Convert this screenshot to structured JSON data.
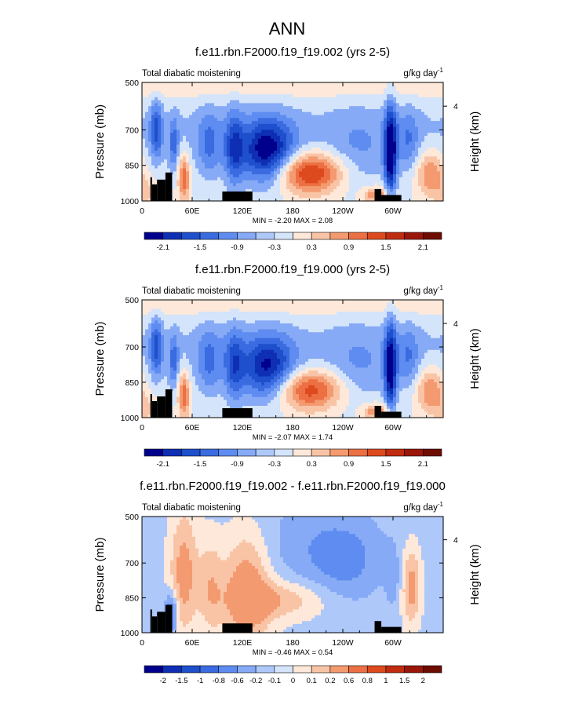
{
  "page": {
    "title": "ANN"
  },
  "colors": {
    "land": "#000000",
    "border": "#000000",
    "blues": [
      "#00008c",
      "#0e2fb4",
      "#1e4fcc",
      "#3a6be0",
      "#5e8cf0",
      "#86aaf5",
      "#afc8fa",
      "#d4e4fa"
    ],
    "reds": [
      "#fde8d9",
      "#f9c4a6",
      "#f49a70",
      "#ec7044",
      "#dd4a1e",
      "#c02c10",
      "#9a1608",
      "#6e0c00"
    ],
    "diff_center": "#dde9f8",
    "diff_blues": [
      "#00008c",
      "#0e2fb4",
      "#1e4fcc",
      "#3a6be0",
      "#5e8cf0",
      "#86aaf5",
      "#afc8fa",
      "#d4e4fa"
    ],
    "diff_reds": [
      "#fde8d9",
      "#f9c4a6",
      "#f49a70",
      "#ec7044",
      "#dd4a1e",
      "#c02c10",
      "#9a1608",
      "#6e0c00"
    ]
  },
  "chart_data": [
    {
      "type": "heatmap",
      "title": "f.e11.rbn.F2000.f19_f19.002 (yrs 2-5)",
      "left_label": "Total diabatic moistening",
      "units_label": "g/kg day",
      "units_exp": "-1",
      "ylabel": "Pressure (mb)",
      "y2label": "Height (km)",
      "yticks": [
        "500",
        "700",
        "850",
        "1000"
      ],
      "ytick_values": [
        500,
        700,
        850,
        1000
      ],
      "y2ticks": [
        "4"
      ],
      "y2tick_values": [
        600
      ],
      "xticks": [
        "0",
        "60E",
        "120E",
        "180",
        "120W",
        "60W"
      ],
      "xtick_values": [
        0,
        60,
        120,
        180,
        240,
        300
      ],
      "xlim": [
        0,
        360
      ],
      "ylim": [
        500,
        1000
      ],
      "stats": "MIN = -2.20  MAX =  2.08",
      "colorbar_labels": [
        "-2.1",
        "-1.5",
        "-0.9",
        "-0.3",
        "0.3",
        "0.9",
        "1.5",
        "2.1"
      ],
      "colorbar_levels": [
        -2.1,
        -1.8,
        -1.5,
        -1.2,
        -0.9,
        -0.6,
        -0.3,
        0,
        0.3,
        0.6,
        0.9,
        1.2,
        1.5,
        1.8,
        2.1
      ],
      "land_segments": [
        [
          10,
          12,
          900
        ],
        [
          12,
          18,
          930
        ],
        [
          18,
          28,
          910
        ],
        [
          28,
          36,
          880
        ],
        [
          96,
          132,
          960
        ],
        [
          278,
          286,
          950
        ],
        [
          286,
          310,
          975
        ]
      ]
    },
    {
      "type": "heatmap",
      "title": "f.e11.rbn.F2000.f19_f19.000 (yrs 2-5)",
      "left_label": "Total diabatic moistening",
      "units_label": "g/kg day",
      "units_exp": "-1",
      "ylabel": "Pressure (mb)",
      "y2label": "Height (km)",
      "yticks": [
        "500",
        "700",
        "850",
        "1000"
      ],
      "ytick_values": [
        500,
        700,
        850,
        1000
      ],
      "y2ticks": [
        "4"
      ],
      "y2tick_values": [
        600
      ],
      "xticks": [
        "0",
        "60E",
        "120E",
        "180",
        "120W",
        "60W"
      ],
      "xtick_values": [
        0,
        60,
        120,
        180,
        240,
        300
      ],
      "xlim": [
        0,
        360
      ],
      "ylim": [
        500,
        1000
      ],
      "stats": "MIN = -2.07  MAX =  1.74",
      "colorbar_labels": [
        "-2.1",
        "-1.5",
        "-0.9",
        "-0.3",
        "0.3",
        "0.9",
        "1.5",
        "2.1"
      ],
      "colorbar_levels": [
        -2.1,
        -1.8,
        -1.5,
        -1.2,
        -0.9,
        -0.6,
        -0.3,
        0,
        0.3,
        0.6,
        0.9,
        1.2,
        1.5,
        1.8,
        2.1
      ],
      "land_segments": [
        [
          10,
          12,
          900
        ],
        [
          12,
          18,
          930
        ],
        [
          18,
          28,
          910
        ],
        [
          28,
          36,
          880
        ],
        [
          96,
          132,
          960
        ],
        [
          278,
          286,
          950
        ],
        [
          286,
          310,
          975
        ]
      ]
    },
    {
      "type": "heatmap",
      "title": "f.e11.rbn.F2000.f19_f19.002 - f.e11.rbn.F2000.f19_f19.000",
      "left_label": "Total diabatic moistening",
      "units_label": "g/kg day",
      "units_exp": "-1",
      "ylabel": "Pressure (mb)",
      "y2label": "Height (km)",
      "yticks": [
        "500",
        "700",
        "850",
        "1000"
      ],
      "ytick_values": [
        500,
        700,
        850,
        1000
      ],
      "y2ticks": [
        "4"
      ],
      "y2tick_values": [
        600
      ],
      "xticks": [
        "0",
        "60E",
        "120E",
        "180",
        "120W",
        "60W"
      ],
      "xtick_values": [
        0,
        60,
        120,
        180,
        240,
        300
      ],
      "xlim": [
        0,
        360
      ],
      "ylim": [
        500,
        1000
      ],
      "stats": "MIN = -0.46  MAX =  0.54",
      "colorbar_labels": [
        "-2",
        "-1.5",
        "-1",
        "-0.8",
        "-0.6",
        "-0.2",
        "-0.1",
        "0",
        "0.1",
        "0.2",
        "0.6",
        "0.8",
        "1",
        "1.5",
        "2"
      ],
      "colorbar_levels": [
        -2,
        -1.5,
        -1,
        -0.8,
        -0.6,
        -0.2,
        -0.1,
        0,
        0.1,
        0.2,
        0.6,
        0.8,
        1,
        1.5,
        2
      ],
      "land_segments": [
        [
          10,
          12,
          900
        ],
        [
          12,
          18,
          930
        ],
        [
          18,
          28,
          910
        ],
        [
          28,
          36,
          880
        ],
        [
          96,
          132,
          960
        ],
        [
          278,
          286,
          950
        ],
        [
          286,
          310,
          975
        ]
      ]
    }
  ]
}
